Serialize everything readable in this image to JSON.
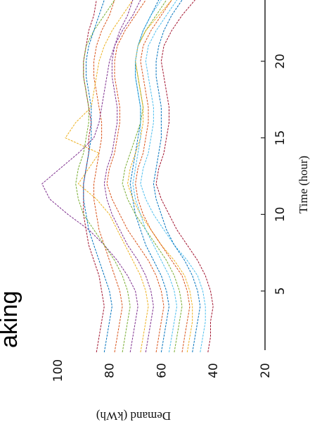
{
  "fragment_text": "aking",
  "chart_data": {
    "type": "line",
    "rotation": "rotated 90° counter-clockwise",
    "xlabel": "Time (hour)",
    "ylabel": "Demand (kWh)",
    "x_ticks": [
      5,
      10,
      15,
      20
    ],
    "y_ticks": [
      20,
      40,
      60,
      80,
      100
    ],
    "xlim": [
      1,
      24
    ],
    "ylim": [
      20,
      110
    ],
    "grid": false,
    "legend": "none",
    "x": [
      1,
      2,
      3,
      4,
      5,
      6,
      7,
      8,
      9,
      10,
      11,
      12,
      13,
      14,
      15,
      16,
      17,
      18,
      19,
      20,
      21,
      22,
      23,
      24
    ],
    "series": [
      {
        "color": "#0072BD",
        "values": [
          60,
          59,
          58,
          57,
          58,
          60,
          63,
          66,
          68,
          70,
          71,
          72,
          71,
          70,
          69,
          68,
          68,
          69,
          70,
          70,
          69,
          67,
          64,
          61
        ]
      },
      {
        "color": "#D95319",
        "values": [
          78,
          77,
          76,
          75,
          76,
          78,
          80,
          82,
          84,
          85,
          86,
          86,
          85,
          84,
          83,
          83,
          84,
          85,
          86,
          86,
          85,
          83,
          80,
          78
        ]
      },
      {
        "color": "#EDB120",
        "values": [
          68,
          67,
          66,
          65,
          66,
          68,
          71,
          74,
          77,
          80,
          85,
          92,
          88,
          84,
          97,
          93,
          87,
          86,
          85,
          84,
          82,
          79,
          75,
          71
        ]
      },
      {
        "color": "#7E2F8E",
        "values": [
          72,
          71,
          70,
          69,
          70,
          73,
          77,
          82,
          88,
          96,
          103,
          106,
          99,
          92,
          86,
          84,
          83,
          82,
          81,
          80,
          78,
          76,
          73,
          71
        ]
      },
      {
        "color": "#77AC30",
        "values": [
          55,
          54,
          53,
          52,
          53,
          55,
          58,
          62,
          66,
          70,
          73,
          75,
          74,
          72,
          70,
          68,
          67,
          68,
          69,
          70,
          69,
          66,
          62,
          58
        ]
      },
      {
        "color": "#4DBEEE",
        "values": [
          45,
          44,
          43,
          43,
          44,
          46,
          50,
          55,
          59,
          63,
          66,
          68,
          67,
          65,
          64,
          63,
          63,
          64,
          65,
          66,
          65,
          62,
          58,
          54
        ]
      },
      {
        "color": "#A2142F",
        "values": [
          85,
          84,
          83,
          82,
          83,
          84,
          86,
          88,
          89,
          90,
          90,
          90,
          89,
          88,
          88,
          87,
          88,
          89,
          90,
          90,
          89,
          88,
          86,
          85
        ]
      },
      {
        "color": "#0072BD",
        "values": [
          48,
          47,
          46,
          45,
          46,
          48,
          51,
          55,
          58,
          60,
          62,
          63,
          62,
          61,
          60,
          60,
          60,
          61,
          62,
          62,
          61,
          59,
          56,
          52
        ]
      },
      {
        "color": "#D95319",
        "values": [
          62,
          61,
          60,
          59,
          60,
          62,
          65,
          69,
          73,
          76,
          79,
          81,
          80,
          78,
          77,
          76,
          76,
          77,
          78,
          78,
          77,
          74,
          70,
          66
        ]
      },
      {
        "color": "#EDB120",
        "values": [
          50,
          49,
          48,
          48,
          49,
          51,
          55,
          60,
          64,
          68,
          71,
          73,
          72,
          70,
          68,
          67,
          67,
          68,
          69,
          70,
          69,
          66,
          61,
          56
        ]
      },
      {
        "color": "#77AC30",
        "values": [
          75,
          74,
          73,
          72,
          73,
          75,
          78,
          82,
          86,
          90,
          92,
          93,
          92,
          90,
          89,
          88,
          88,
          89,
          90,
          90,
          89,
          86,
          82,
          78
        ]
      },
      {
        "color": "#4DBEEE",
        "values": [
          57,
          56,
          55,
          54,
          55,
          57,
          60,
          63,
          66,
          68,
          70,
          71,
          70,
          69,
          68,
          68,
          68,
          69,
          70,
          70,
          69,
          67,
          64,
          60
        ]
      },
      {
        "color": "#A2142F",
        "values": [
          42,
          41,
          41,
          40,
          41,
          43,
          46,
          50,
          54,
          57,
          60,
          62,
          61,
          59,
          58,
          57,
          57,
          58,
          59,
          60,
          59,
          56,
          52,
          47
        ]
      },
      {
        "color": "#0072BD",
        "values": [
          82,
          81,
          80,
          79,
          80,
          82,
          84,
          86,
          88,
          89,
          90,
          90,
          89,
          88,
          87,
          87,
          87,
          88,
          89,
          89,
          88,
          86,
          84,
          82
        ]
      },
      {
        "color": "#D95319",
        "values": [
          52,
          51,
          50,
          49,
          50,
          52,
          56,
          60,
          64,
          67,
          69,
          70,
          69,
          67,
          66,
          65,
          65,
          66,
          67,
          68,
          67,
          64,
          60,
          56
        ]
      },
      {
        "color": "#7E2F8E",
        "values": [
          66,
          65,
          64,
          63,
          64,
          66,
          69,
          73,
          76,
          79,
          81,
          82,
          81,
          79,
          78,
          77,
          77,
          78,
          79,
          79,
          78,
          75,
          71,
          68
        ]
      }
    ]
  }
}
